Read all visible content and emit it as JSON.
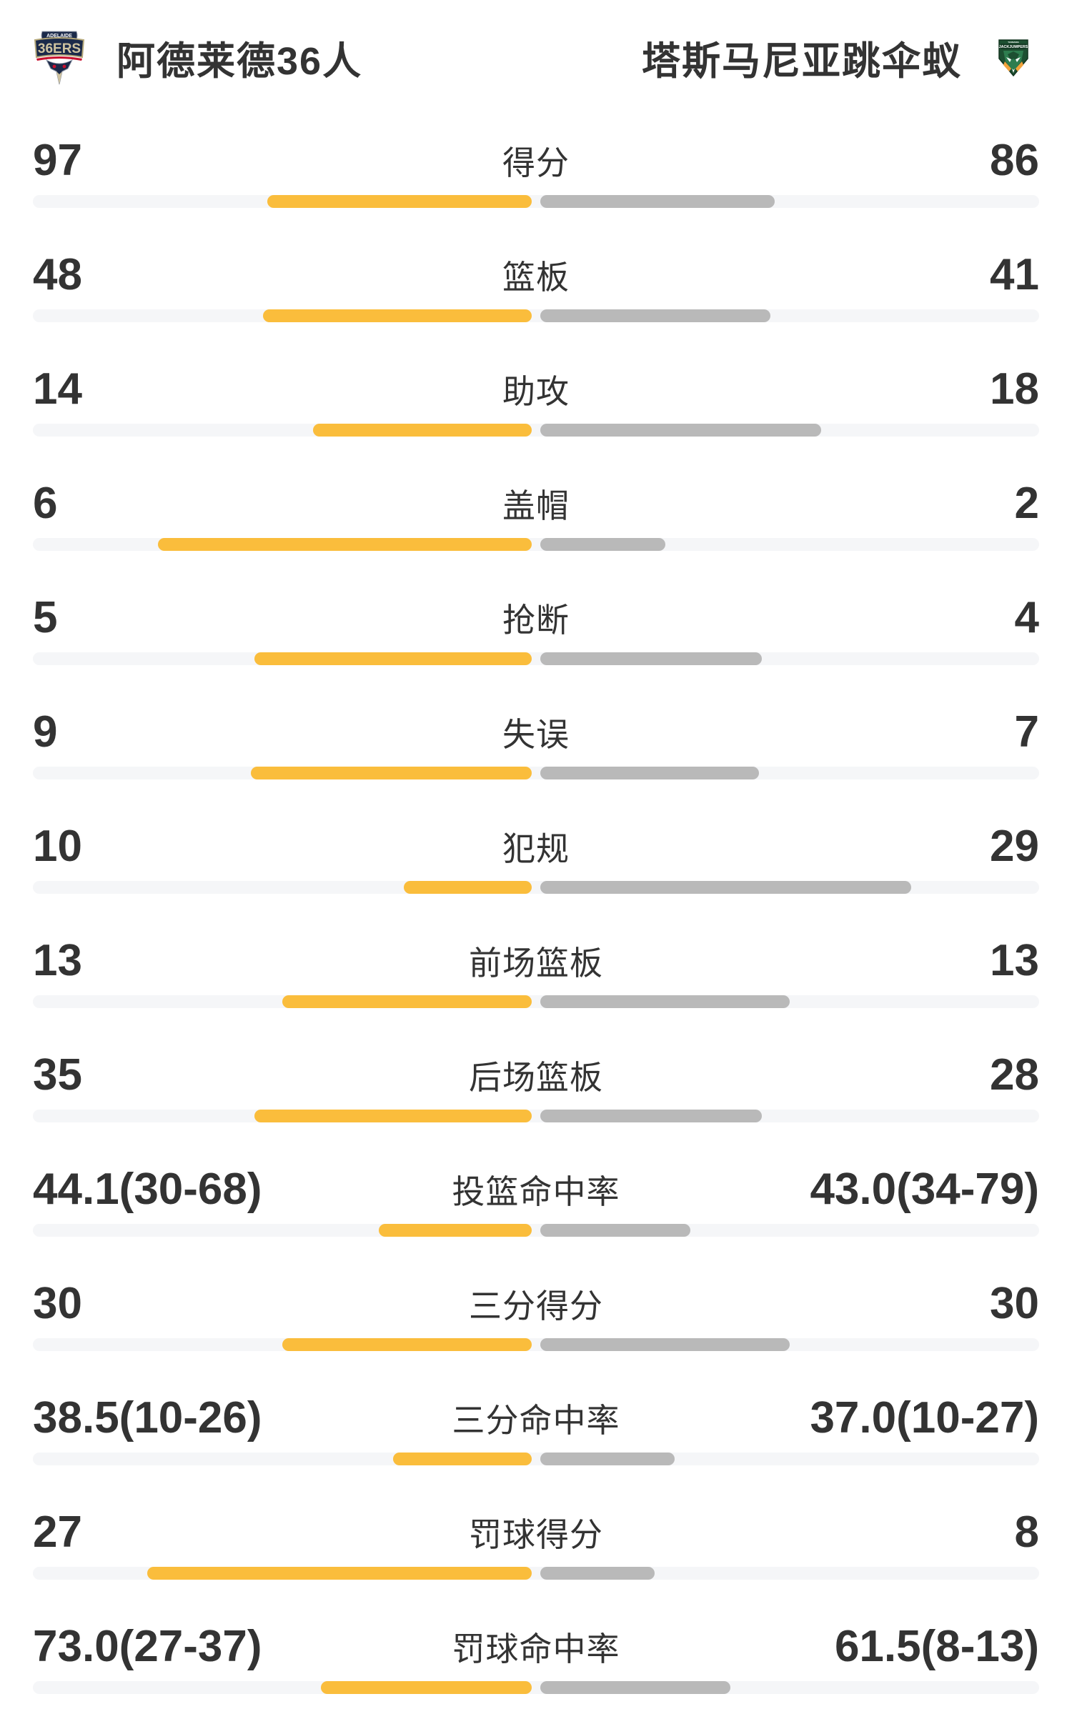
{
  "teams": {
    "home": {
      "name": "阿德莱德36人",
      "logo_name": "adelaide-36ers-crest",
      "logo_text_top": "ADELAIDE",
      "logo_text_main": "36ERS"
    },
    "away": {
      "name": "塔斯马尼亚跳伞蚁",
      "logo_name": "tasmania-jackjumpers-crest",
      "logo_text_top": "TASMANIA",
      "logo_text_main": "JACKJUMPERS"
    }
  },
  "colors": {
    "home_bar": "#FABD3C",
    "away_bar": "#B9B9B9",
    "track": "#F5F6F8",
    "text": "#333333"
  },
  "stats": [
    {
      "label": "得分",
      "home": {
        "display": "97",
        "fill_pct": 53.0
      },
      "away": {
        "display": "86",
        "fill_pct": 47.0
      }
    },
    {
      "label": "篮板",
      "home": {
        "display": "48",
        "fill_pct": 53.9
      },
      "away": {
        "display": "41",
        "fill_pct": 46.1
      }
    },
    {
      "label": "助攻",
      "home": {
        "display": "14",
        "fill_pct": 43.8
      },
      "away": {
        "display": "18",
        "fill_pct": 56.3
      }
    },
    {
      "label": "盖帽",
      "home": {
        "display": "6",
        "fill_pct": 75.0
      },
      "away": {
        "display": "2",
        "fill_pct": 25.0
      }
    },
    {
      "label": "抢断",
      "home": {
        "display": "5",
        "fill_pct": 55.6
      },
      "away": {
        "display": "4",
        "fill_pct": 44.4
      }
    },
    {
      "label": "失误",
      "home": {
        "display": "9",
        "fill_pct": 56.3
      },
      "away": {
        "display": "7",
        "fill_pct": 43.8
      }
    },
    {
      "label": "犯规",
      "home": {
        "display": "10",
        "fill_pct": 25.6
      },
      "away": {
        "display": "29",
        "fill_pct": 74.4
      }
    },
    {
      "label": "前场篮板",
      "home": {
        "display": "13",
        "fill_pct": 50.0
      },
      "away": {
        "display": "13",
        "fill_pct": 50.0
      }
    },
    {
      "label": "后场篮板",
      "home": {
        "display": "35",
        "fill_pct": 55.6
      },
      "away": {
        "display": "28",
        "fill_pct": 44.4
      }
    },
    {
      "label": "投篮命中率",
      "home": {
        "display": "44.1(30-68)",
        "fill_pct": 30.6
      },
      "away": {
        "display": "43.0(34-79)",
        "fill_pct": 30.1
      }
    },
    {
      "label": "三分得分",
      "home": {
        "display": "30",
        "fill_pct": 50.0
      },
      "away": {
        "display": "30",
        "fill_pct": 50.0
      }
    },
    {
      "label": "三分命中率",
      "home": {
        "display": "38.5(10-26)",
        "fill_pct": 27.8
      },
      "away": {
        "display": "37.0(10-27)",
        "fill_pct": 27.0
      }
    },
    {
      "label": "罚球得分",
      "home": {
        "display": "27",
        "fill_pct": 77.1
      },
      "away": {
        "display": "8",
        "fill_pct": 22.9
      }
    },
    {
      "label": "罚球命中率",
      "home": {
        "display": "73.0(27-37)",
        "fill_pct": 42.2
      },
      "away": {
        "display": "61.5(8-13)",
        "fill_pct": 38.1
      }
    }
  ],
  "chart_data": {
    "type": "bar",
    "orientation": "horizontal-paired-from-center",
    "title": "阿德莱德36人 vs 塔斯马尼亚跳伞蚁",
    "categories": [
      "得分",
      "篮板",
      "助攻",
      "盖帽",
      "抢断",
      "失误",
      "犯规",
      "前场篮板",
      "后场篮板",
      "投篮命中率",
      "三分得分",
      "三分命中率",
      "罚球得分",
      "罚球命中率"
    ],
    "series": [
      {
        "name": "阿德莱德36人",
        "color": "#FABD3C",
        "values": [
          97,
          48,
          14,
          6,
          5,
          9,
          10,
          13,
          35,
          44.1,
          30,
          38.5,
          27,
          73.0
        ]
      },
      {
        "name": "塔斯马尼亚跳伞蚁",
        "color": "#B9B9B9",
        "values": [
          86,
          41,
          18,
          2,
          4,
          7,
          29,
          13,
          28,
          43.0,
          30,
          37.0,
          8,
          61.5
        ]
      }
    ],
    "shooting_detail": {
      "投篮命中率": {
        "home_made_att": "30-68",
        "away_made_att": "34-79"
      },
      "三分命中率": {
        "home_made_att": "10-26",
        "away_made_att": "10-27"
      },
      "罚球命中率": {
        "home_made_att": "27-37",
        "away_made_att": "8-13"
      }
    },
    "legend_position": "top",
    "grid": false
  }
}
